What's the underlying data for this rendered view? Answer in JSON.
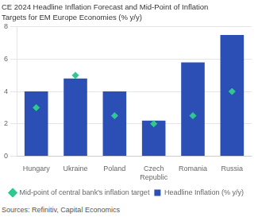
{
  "chart_data": {
    "type": "bar",
    "title": "CE 2024 Headline Inflation Forecast and Mid-Point of Inflation",
    "subtitle": "Targets for EM Europe Economies (% y/y)",
    "source": "Sources: Refinitiv, Capital Economics",
    "categories": [
      "Hungary",
      "Ukraine",
      "Poland",
      "Czech\nRepublic",
      "Romania",
      "Russia"
    ],
    "series": [
      {
        "name": "Headline Inflation (% y/y)",
        "type": "bar",
        "color": "#2B4FB5",
        "values": [
          4.0,
          4.8,
          4.0,
          2.2,
          5.8,
          7.5
        ]
      },
      {
        "name": "Mid-point of central bank's inflation target",
        "type": "scatter",
        "marker": "diamond",
        "color": "#2DC98E",
        "values": [
          3.0,
          5.0,
          2.5,
          2.0,
          2.5,
          4.0
        ]
      }
    ],
    "ylim": [
      0,
      8
    ],
    "yticks": [
      0,
      2,
      4,
      6,
      8
    ],
    "grid": "y",
    "legend": "bottom"
  }
}
